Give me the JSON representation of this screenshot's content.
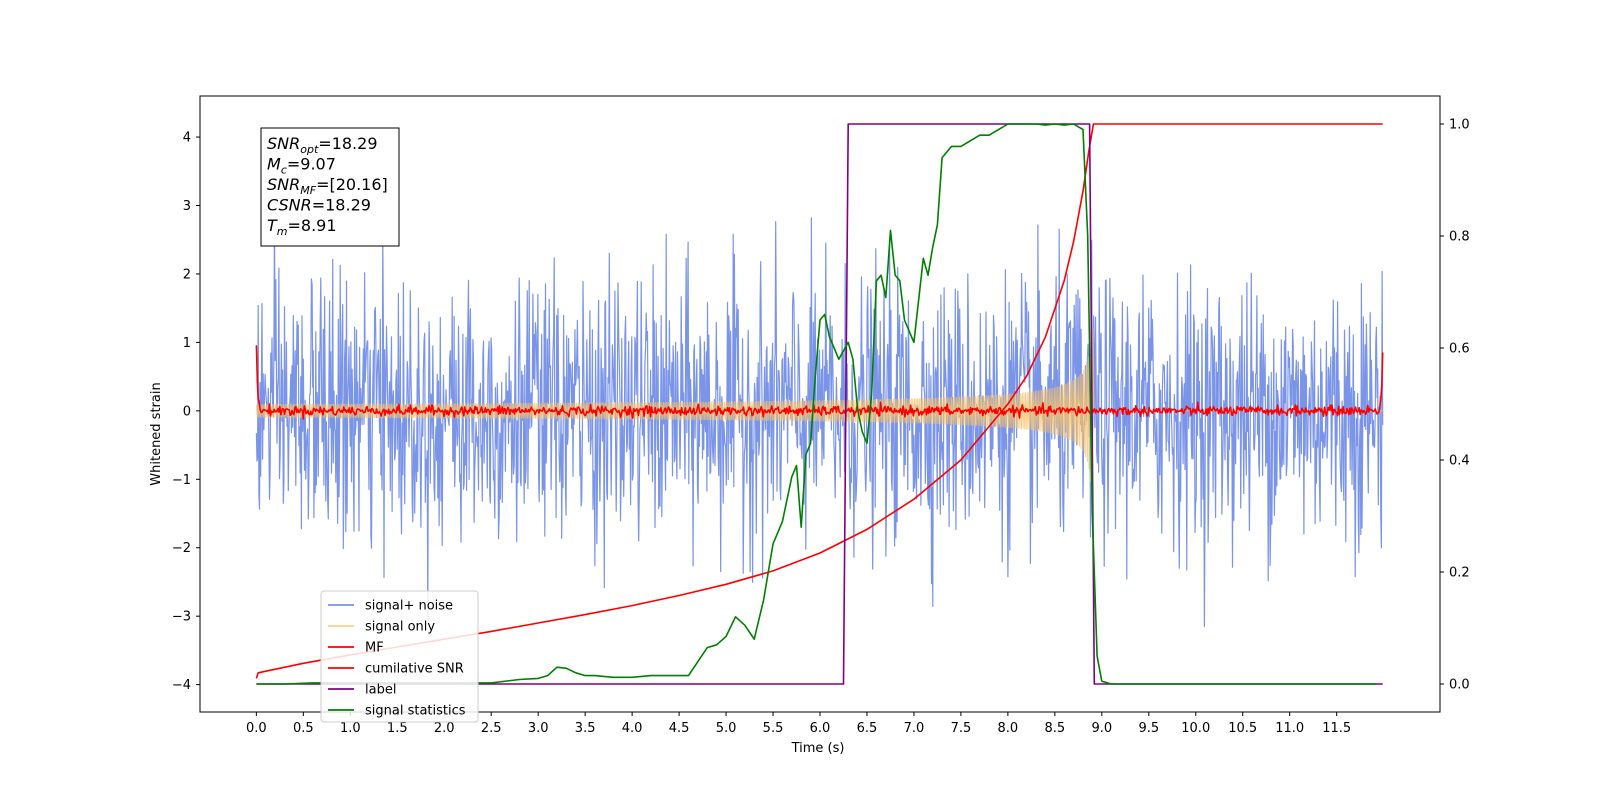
{
  "chart_data": {
    "type": "line",
    "title": "",
    "xlabel": "Time (s)",
    "ylabel": "Whitened strain",
    "xlim": [
      -0.6,
      12.6
    ],
    "ylim_left": [
      -4.4,
      4.6
    ],
    "ylim_right": [
      -0.05,
      1.05
    ],
    "x_ticks": [
      0.0,
      0.5,
      1.0,
      1.5,
      2.0,
      2.5,
      3.0,
      3.5,
      4.0,
      4.5,
      5.0,
      5.5,
      6.0,
      6.5,
      7.0,
      7.5,
      8.0,
      8.5,
      9.0,
      9.5,
      10.0,
      10.5,
      11.0,
      11.5
    ],
    "x_tick_labels": [
      "0.0",
      "0.5",
      "1.0",
      "1.5",
      "2.0",
      "2.5",
      "3.0",
      "3.5",
      "4.0",
      "4.5",
      "5.0",
      "5.5",
      "6.0",
      "6.5",
      "7.0",
      "7.5",
      "8.0",
      "8.5",
      "9.0",
      "9.5",
      "10.0",
      "10.5",
      "11.0",
      "11.5"
    ],
    "y_ticks_left": [
      -4,
      -3,
      -2,
      -1,
      0,
      1,
      2,
      3,
      4
    ],
    "y_tick_labels_left": [
      "−4",
      "−3",
      "−2",
      "−1",
      "0",
      "1",
      "2",
      "3",
      "4"
    ],
    "y_ticks_right": [
      0.0,
      0.2,
      0.4,
      0.6,
      0.8,
      1.0
    ],
    "y_tick_labels_right": [
      "0.0",
      "0.2",
      "0.4",
      "0.6",
      "0.8",
      "1.0"
    ],
    "grid": false,
    "legend_position": "lower-left",
    "annotation": {
      "lines": [
        {
          "var": "SNR",
          "sub": "opt",
          "value": "=18.29"
        },
        {
          "var": "M",
          "sub": "c",
          "value": "=9.07"
        },
        {
          "var": "SNR",
          "sub": "MF",
          "value": "=[20.16]"
        },
        {
          "var": "CSNR",
          "sub": "",
          "value": "=18.29"
        },
        {
          "var": "T",
          "sub": "m",
          "value": "=8.91"
        }
      ]
    },
    "series": [
      {
        "name": "signal+ noise",
        "color": "#6b88e6",
        "axis": "left",
        "kind": "noise",
        "sigma": 0.95,
        "x_start": 0.0,
        "x_end": 11.99
      },
      {
        "name": "signal only",
        "color": "#f5c26b",
        "axis": "left",
        "kind": "chirp",
        "merger": 8.91,
        "amp_at_zero": 0.01,
        "amp_at_merger": 1.2,
        "x_start": 0.0,
        "x_end": 11.99
      },
      {
        "name": "MF",
        "color": "#ff0000",
        "axis": "left",
        "kind": "mf",
        "x_start": 0.0,
        "x_end": 11.99,
        "start_value": 1.0,
        "end_value": 0.85
      },
      {
        "name": "cumilative SNR",
        "color": "#ff0000",
        "axis": "right",
        "x": [
          0.0,
          0.02,
          0.5,
          1.0,
          1.5,
          2.0,
          2.5,
          3.0,
          3.5,
          4.0,
          4.5,
          5.0,
          5.5,
          6.0,
          6.5,
          7.0,
          7.5,
          8.0,
          8.2,
          8.4,
          8.6,
          8.7,
          8.8,
          8.86,
          8.91,
          9.0,
          10.0,
          11.0,
          11.99
        ],
        "y": [
          0.01,
          0.02,
          0.037,
          0.052,
          0.066,
          0.08,
          0.094,
          0.109,
          0.124,
          0.14,
          0.158,
          0.178,
          0.202,
          0.234,
          0.276,
          0.33,
          0.4,
          0.5,
          0.55,
          0.62,
          0.72,
          0.79,
          0.88,
          0.95,
          1.0,
          1.0,
          1.0,
          1.0,
          1.0
        ]
      },
      {
        "name": "label",
        "color": "#800080",
        "axis": "right",
        "x": [
          0.0,
          6.25,
          6.3,
          8.87,
          8.92,
          11.99
        ],
        "y": [
          0.0,
          0.0,
          1.0,
          1.0,
          0.0,
          0.0
        ]
      },
      {
        "name": "signal statistics",
        "color": "#008000",
        "axis": "right",
        "x": [
          0.0,
          0.3,
          0.6,
          1.0,
          1.5,
          2.0,
          2.5,
          2.8,
          3.0,
          3.1,
          3.2,
          3.3,
          3.4,
          3.5,
          3.6,
          3.8,
          4.0,
          4.2,
          4.4,
          4.6,
          4.7,
          4.8,
          4.9,
          5.0,
          5.1,
          5.2,
          5.3,
          5.4,
          5.5,
          5.6,
          5.7,
          5.75,
          5.8,
          5.85,
          5.9,
          5.95,
          6.0,
          6.05,
          6.1,
          6.2,
          6.3,
          6.35,
          6.4,
          6.45,
          6.5,
          6.55,
          6.6,
          6.65,
          6.7,
          6.75,
          6.8,
          6.85,
          6.9,
          7.0,
          7.1,
          7.15,
          7.2,
          7.25,
          7.3,
          7.4,
          7.5,
          7.6,
          7.7,
          7.8,
          7.9,
          8.0,
          8.1,
          8.2,
          8.3,
          8.4,
          8.5,
          8.6,
          8.7,
          8.8,
          8.85,
          8.9,
          8.95,
          9.0,
          9.1,
          9.3,
          9.6,
          10.0,
          11.0,
          11.92
        ],
        "y": [
          0.0,
          0.0,
          0.002,
          0.002,
          0.002,
          0.002,
          0.002,
          0.008,
          0.01,
          0.015,
          0.03,
          0.028,
          0.02,
          0.015,
          0.015,
          0.012,
          0.012,
          0.015,
          0.015,
          0.015,
          0.04,
          0.065,
          0.07,
          0.085,
          0.12,
          0.105,
          0.08,
          0.15,
          0.25,
          0.29,
          0.37,
          0.39,
          0.28,
          0.41,
          0.43,
          0.55,
          0.65,
          0.66,
          0.62,
          0.58,
          0.61,
          0.58,
          0.49,
          0.45,
          0.43,
          0.52,
          0.72,
          0.73,
          0.69,
          0.81,
          0.73,
          0.72,
          0.65,
          0.61,
          0.76,
          0.73,
          0.78,
          0.82,
          0.94,
          0.96,
          0.96,
          0.97,
          0.98,
          0.98,
          0.99,
          1.0,
          1.0,
          1.0,
          1.0,
          0.998,
          1.0,
          0.998,
          1.0,
          0.99,
          0.8,
          0.3,
          0.05,
          0.005,
          0.0,
          0.0,
          0.0,
          0.0,
          0.0,
          0.0
        ]
      }
    ]
  }
}
